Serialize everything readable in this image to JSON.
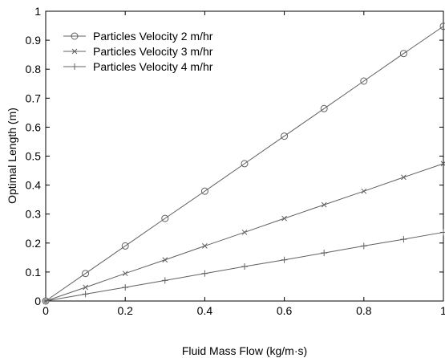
{
  "chart_data": {
    "type": "line",
    "title": "",
    "xlabel": "Fluid Mass Flow (kg/m·s)",
    "ylabel": "Optimal Length (m)",
    "xlim": [
      0,
      1
    ],
    "ylim": [
      0,
      1
    ],
    "xticks": [
      0,
      0.2,
      0.4,
      0.6,
      0.8,
      1
    ],
    "xtick_labels": [
      "0",
      "0.2",
      "0.4",
      "0.6",
      "0.8",
      "1"
    ],
    "yticks": [
      0,
      0.1,
      0.2,
      0.3,
      0.4,
      0.5,
      0.6,
      0.7,
      0.8,
      0.9,
      1
    ],
    "ytick_labels": [
      "0",
      "0.1",
      "0.2",
      "0.3",
      "0.4",
      "0.5",
      "0.6",
      "0.7",
      "0.8",
      "0.9",
      "1"
    ],
    "grid": false,
    "legend_position": "top-left",
    "x": [
      0,
      0.1,
      0.2,
      0.3,
      0.4,
      0.5,
      0.6,
      0.7,
      0.8,
      0.9,
      1.0
    ],
    "series": [
      {
        "name": "Particles Velocity 2 m/hr",
        "marker": "circle",
        "values": [
          0,
          0.095,
          0.19,
          0.285,
          0.379,
          0.474,
          0.569,
          0.664,
          0.759,
          0.854,
          0.948
        ]
      },
      {
        "name": "Particles Velocity 3 m/hr",
        "marker": "x",
        "values": [
          0,
          0.047,
          0.095,
          0.142,
          0.19,
          0.237,
          0.285,
          0.332,
          0.379,
          0.427,
          0.474
        ]
      },
      {
        "name": "Particles Velocity 4 m/hr",
        "marker": "plus",
        "values": [
          0,
          0.024,
          0.047,
          0.071,
          0.095,
          0.119,
          0.142,
          0.166,
          0.19,
          0.213,
          0.237
        ]
      }
    ],
    "line_color": "#606060"
  }
}
